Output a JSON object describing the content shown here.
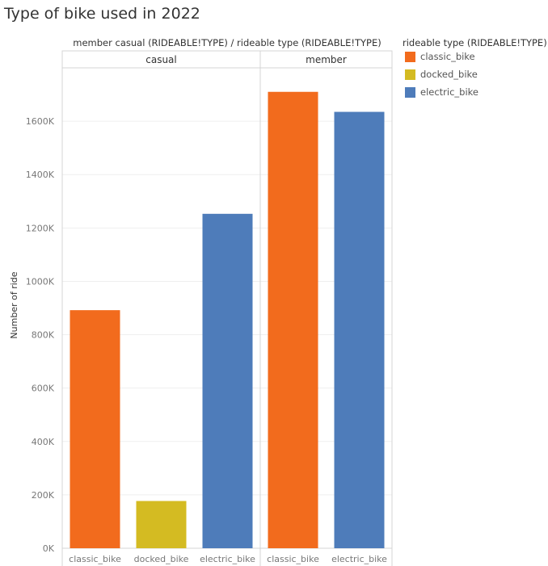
{
  "chart_data": {
    "type": "bar",
    "title": "Type of bike used in 2022",
    "header": "member casual (RIDEABLE!TYPE)  /  rideable type (RIDEABLE!TYPE)",
    "ylabel": "Number of ride",
    "ylim": [
      0,
      1800000
    ],
    "yticks": [
      0,
      200000,
      400000,
      600000,
      800000,
      1000000,
      1200000,
      1400000,
      1600000
    ],
    "ytick_labels": [
      "0K",
      "200K",
      "400K",
      "600K",
      "800K",
      "1000K",
      "1200K",
      "1400K",
      "1600K"
    ],
    "grid": true,
    "legend": {
      "title": "rideable type (RIDEABLE!TYPE)",
      "placement": "right",
      "items": [
        {
          "label": "classic_bike",
          "color": "#F26B1D"
        },
        {
          "label": "docked_bike",
          "color": "#D4BB22"
        },
        {
          "label": "electric_bike",
          "color": "#4E7CBA"
        }
      ]
    },
    "panels": [
      {
        "label": "casual",
        "categories": [
          "classic_bike",
          "docked_bike",
          "electric_bike"
        ],
        "values": [
          892000,
          177000,
          1253000
        ]
      },
      {
        "label": "member",
        "categories": [
          "classic_bike",
          "electric_bike"
        ],
        "values": [
          1710000,
          1635000
        ]
      }
    ]
  }
}
